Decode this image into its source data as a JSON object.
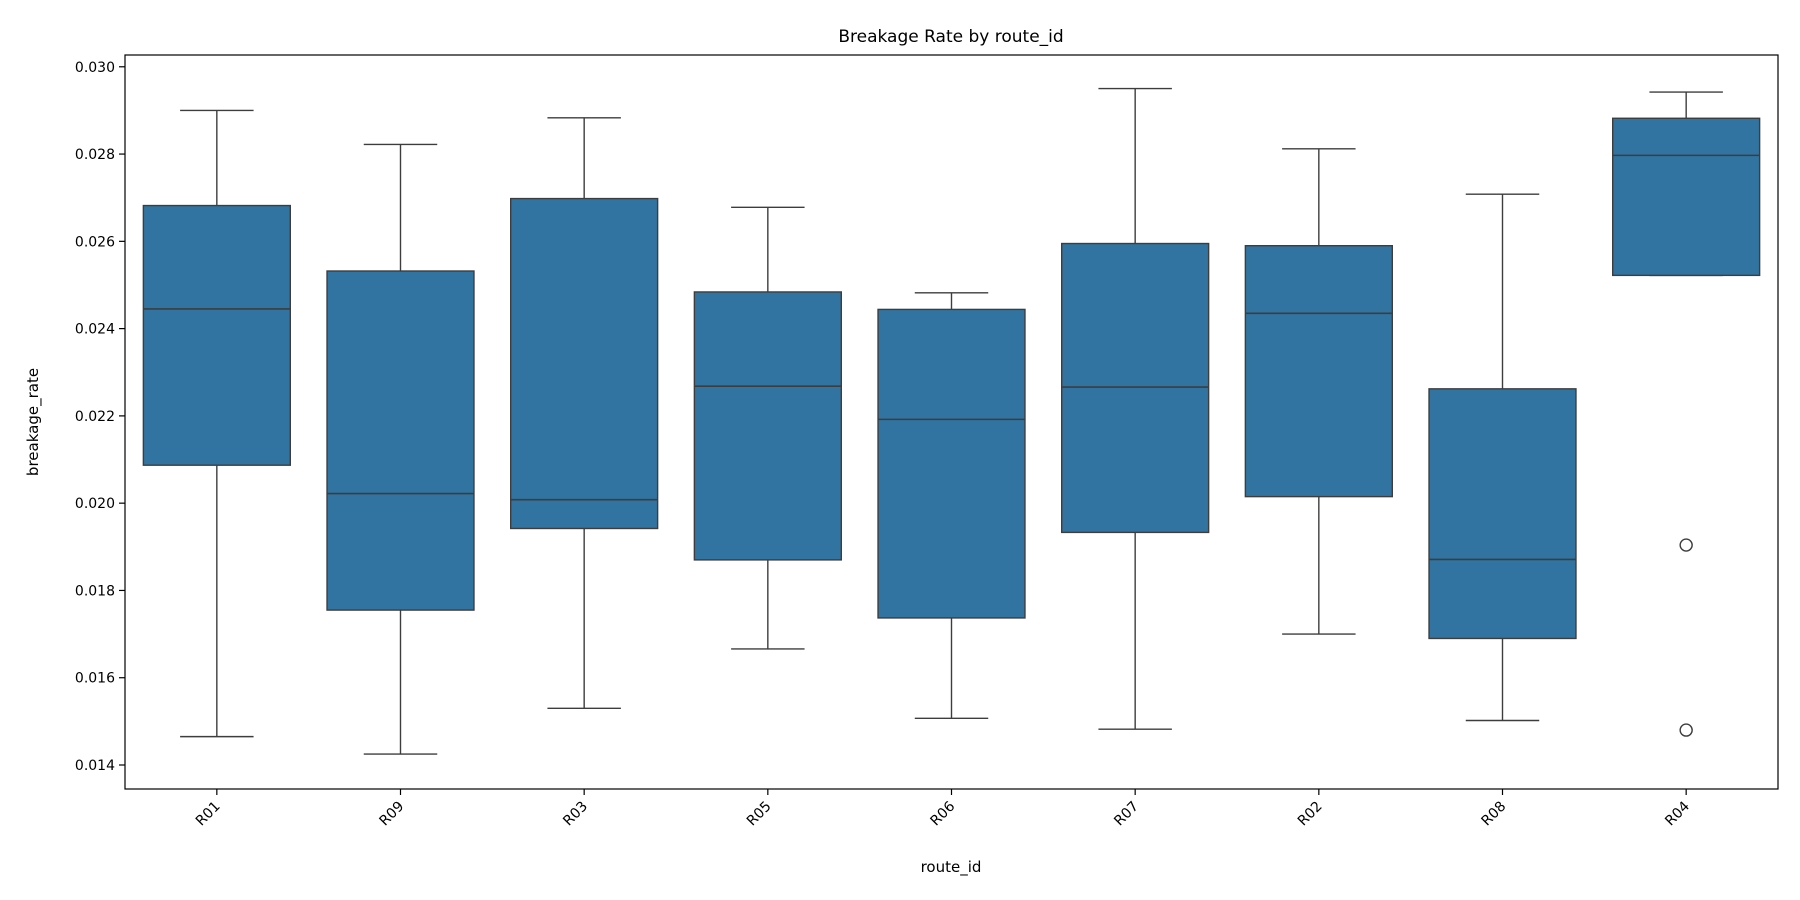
{
  "chart_data": {
    "type": "box",
    "title": "Breakage Rate by route_id",
    "xlabel": "route_id",
    "ylabel": "breakage_rate",
    "ylim": [
      0.01345,
      0.03027
    ],
    "yticks": [
      "0.014",
      "0.016",
      "0.018",
      "0.020",
      "0.022",
      "0.024",
      "0.026",
      "0.028",
      "0.030"
    ],
    "grid": false,
    "color": "#3274a1",
    "edge_color": "#3d3d3d",
    "categories": [
      "R01",
      "R09",
      "R03",
      "R05",
      "R06",
      "R07",
      "R02",
      "R08",
      "R04"
    ],
    "boxes": [
      {
        "label": "R01",
        "whisker_low": 0.01465,
        "q1": 0.02087,
        "median": 0.02445,
        "q3": 0.02682,
        "whisker_high": 0.029,
        "outliers": []
      },
      {
        "label": "R09",
        "whisker_low": 0.01425,
        "q1": 0.01755,
        "median": 0.02022,
        "q3": 0.02532,
        "whisker_high": 0.02822,
        "outliers": []
      },
      {
        "label": "R03",
        "whisker_low": 0.0153,
        "q1": 0.01942,
        "median": 0.02008,
        "q3": 0.02698,
        "whisker_high": 0.02883,
        "outliers": []
      },
      {
        "label": "R05",
        "whisker_low": 0.01666,
        "q1": 0.0187,
        "median": 0.02268,
        "q3": 0.02484,
        "whisker_high": 0.02678,
        "outliers": []
      },
      {
        "label": "R06",
        "whisker_low": 0.01507,
        "q1": 0.01737,
        "median": 0.02192,
        "q3": 0.02444,
        "whisker_high": 0.02482,
        "outliers": []
      },
      {
        "label": "R07",
        "whisker_low": 0.01482,
        "q1": 0.01933,
        "median": 0.02266,
        "q3": 0.02595,
        "whisker_high": 0.0295,
        "outliers": []
      },
      {
        "label": "R02",
        "whisker_low": 0.017,
        "q1": 0.02015,
        "median": 0.02435,
        "q3": 0.0259,
        "whisker_high": 0.02812,
        "outliers": []
      },
      {
        "label": "R08",
        "whisker_low": 0.01502,
        "q1": 0.0169,
        "median": 0.01871,
        "q3": 0.02262,
        "whisker_high": 0.02708,
        "outliers": []
      },
      {
        "label": "R04",
        "whisker_low": 0.02522,
        "q1": 0.02522,
        "median": 0.02797,
        "q3": 0.02882,
        "whisker_high": 0.02942,
        "outliers": [
          0.01904,
          0.0148
        ]
      }
    ]
  }
}
